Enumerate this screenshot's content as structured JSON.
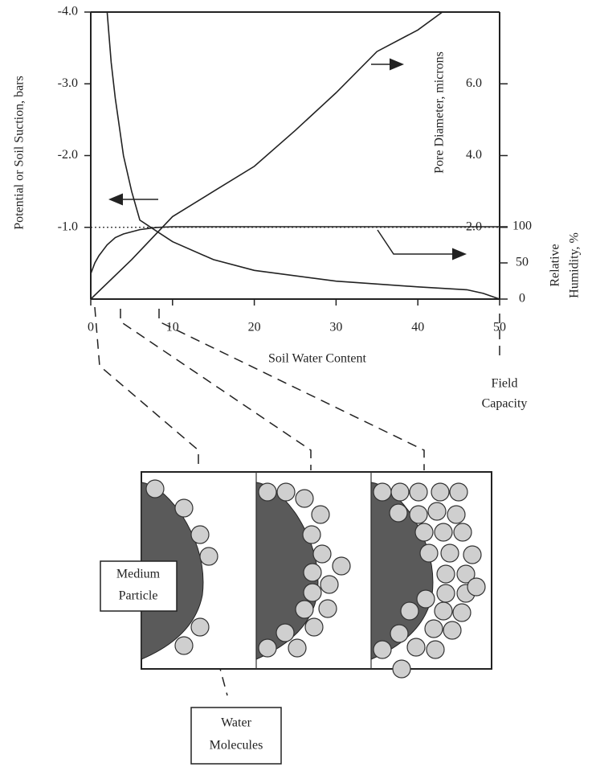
{
  "chart_data": {
    "type": "line",
    "x_label": "Soil Water Content",
    "y_label": "Potential or Soil Suction, bars",
    "y2_label": "Pore Diameter, microns",
    "y3_label": [
      "Relative",
      "Humidity, %"
    ],
    "xlim": [
      0,
      50
    ],
    "xticks": [
      0,
      10,
      20,
      30,
      40,
      50
    ],
    "ylim": [
      0,
      -4
    ],
    "yticks": [
      {
        "value": -1,
        "label": "-1.0"
      },
      {
        "value": -2,
        "label": "-2.0"
      },
      {
        "value": -3,
        "label": "-3.0"
      },
      {
        "value": -4,
        "label": "-4.0"
      }
    ],
    "y2lim": [
      0,
      8
    ],
    "y2ticks": [
      {
        "value": 2,
        "label": "2.0"
      },
      {
        "value": 4,
        "label": "4.0"
      },
      {
        "value": 6,
        "label": "6.0"
      }
    ],
    "y3lim": [
      0,
      100
    ],
    "y3ticks": [
      0,
      50,
      100
    ],
    "series": [
      {
        "color": "#222",
        "axis": "y",
        "x": [
          2,
          2.5,
          3,
          3.5,
          4,
          5,
          6,
          8,
          10,
          15,
          20,
          30,
          40,
          46,
          48,
          50
        ],
        "values": [
          -4,
          -3.3,
          -2.8,
          -2.4,
          -2.0,
          -1.5,
          -1.1,
          -0.95,
          -0.8,
          -0.55,
          -0.4,
          -0.25,
          -0.17,
          -0.13,
          -0.08,
          0
        ]
      },
      {
        "color": "#222",
        "axis": "y2",
        "x": [
          0,
          5,
          10,
          15,
          20,
          25,
          30,
          35,
          40,
          43
        ],
        "values": [
          0,
          1.1,
          2.3,
          3.0,
          3.7,
          4.7,
          5.75,
          6.9,
          7.5,
          8.0
        ]
      },
      {
        "color": "#222",
        "axis": "y3",
        "x": [
          0,
          0.5,
          1,
          2,
          3,
          4,
          6,
          8,
          10,
          50
        ],
        "values": [
          35,
          50,
          60,
          75,
          85,
          90,
          96,
          99,
          100,
          100
        ]
      }
    ],
    "annotations": {
      "field_capacity": [
        "Field",
        "Capacity"
      ],
      "particle": [
        "Medium",
        "Particle"
      ],
      "molecules": [
        "Water",
        "Molecules"
      ]
    }
  }
}
